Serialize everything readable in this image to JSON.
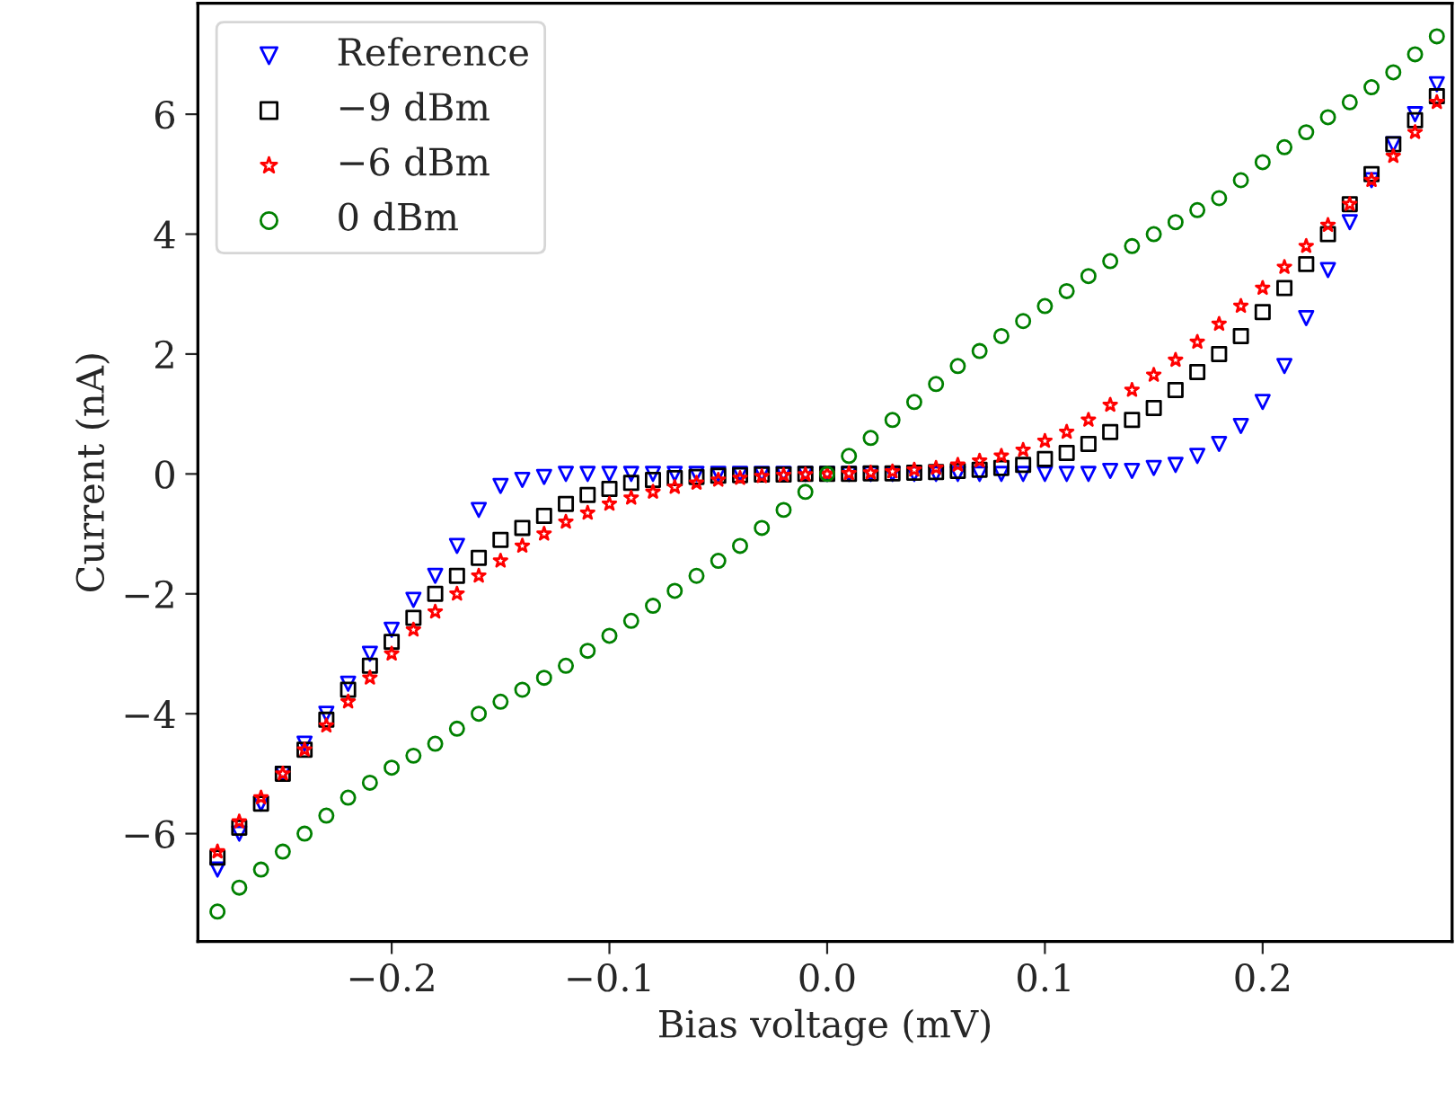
{
  "chart_data": {
    "type": "scatter",
    "xlabel": "Bias voltage (mV)",
    "ylabel": "Current (nA)",
    "x": [
      -0.28,
      -0.27,
      -0.26,
      -0.25,
      -0.24,
      -0.23,
      -0.22,
      -0.21,
      -0.2,
      -0.19,
      -0.18,
      -0.17,
      -0.16,
      -0.15,
      -0.14,
      -0.13,
      -0.12,
      -0.11,
      -0.1,
      -0.09,
      -0.08,
      -0.07,
      -0.06,
      -0.05,
      -0.04,
      -0.03,
      -0.02,
      -0.01,
      0.0,
      0.01,
      0.02,
      0.03,
      0.04,
      0.05,
      0.06,
      0.07,
      0.08,
      0.09,
      0.1,
      0.11,
      0.12,
      0.13,
      0.14,
      0.15,
      0.16,
      0.17,
      0.18,
      0.19,
      0.2,
      0.21,
      0.22,
      0.23,
      0.24,
      0.25,
      0.26,
      0.27,
      0.28
    ],
    "series": [
      {
        "name": "Reference",
        "color": "#0000ff",
        "marker": "triangle",
        "values": [
          -6.6,
          -6.0,
          -5.5,
          -5.0,
          -4.5,
          -4.0,
          -3.5,
          -3.0,
          -2.6,
          -2.1,
          -1.7,
          -1.2,
          -0.6,
          -0.2,
          -0.1,
          -0.05,
          0,
          0,
          0,
          0,
          0,
          0,
          0,
          0,
          0,
          0,
          0,
          0,
          0,
          0,
          0,
          0,
          0,
          0,
          0,
          0,
          0,
          0,
          0,
          0,
          0,
          0.05,
          0.05,
          0.1,
          0.15,
          0.3,
          0.5,
          0.8,
          1.2,
          1.8,
          2.6,
          3.4,
          4.2,
          4.9,
          5.5,
          6.0,
          6.5
        ]
      },
      {
        "name": "−9 dBm",
        "color": "#000000",
        "marker": "square",
        "values": [
          -6.4,
          -5.9,
          -5.5,
          -5.0,
          -4.6,
          -4.1,
          -3.6,
          -3.2,
          -2.8,
          -2.4,
          -2.0,
          -1.7,
          -1.4,
          -1.1,
          -0.9,
          -0.7,
          -0.5,
          -0.35,
          -0.25,
          -0.15,
          -0.1,
          -0.07,
          -0.05,
          -0.03,
          -0.02,
          -0.01,
          -0.01,
          0,
          0,
          0,
          0.01,
          0.01,
          0.02,
          0.03,
          0.05,
          0.07,
          0.1,
          0.15,
          0.25,
          0.35,
          0.5,
          0.7,
          0.9,
          1.1,
          1.4,
          1.7,
          2.0,
          2.3,
          2.7,
          3.1,
          3.5,
          4.0,
          4.5,
          5.0,
          5.5,
          5.9,
          6.3
        ]
      },
      {
        "name": "−6 dBm",
        "color": "#ff0000",
        "marker": "star",
        "values": [
          -6.3,
          -5.8,
          -5.4,
          -5.0,
          -4.6,
          -4.2,
          -3.8,
          -3.4,
          -3.0,
          -2.6,
          -2.3,
          -2.0,
          -1.7,
          -1.45,
          -1.2,
          -1.0,
          -0.8,
          -0.65,
          -0.5,
          -0.4,
          -0.3,
          -0.22,
          -0.15,
          -0.1,
          -0.07,
          -0.04,
          -0.02,
          -0.01,
          0,
          0.01,
          0.02,
          0.04,
          0.07,
          0.1,
          0.15,
          0.22,
          0.3,
          0.4,
          0.55,
          0.7,
          0.9,
          1.15,
          1.4,
          1.65,
          1.9,
          2.2,
          2.5,
          2.8,
          3.1,
          3.45,
          3.8,
          4.15,
          4.5,
          4.9,
          5.3,
          5.7,
          6.2
        ]
      },
      {
        "name": "0 dBm",
        "color": "#008000",
        "marker": "circle",
        "values": [
          -7.3,
          -6.9,
          -6.6,
          -6.3,
          -6.0,
          -5.7,
          -5.4,
          -5.15,
          -4.9,
          -4.7,
          -4.5,
          -4.25,
          -4.0,
          -3.8,
          -3.6,
          -3.4,
          -3.2,
          -2.95,
          -2.7,
          -2.45,
          -2.2,
          -1.95,
          -1.7,
          -1.45,
          -1.2,
          -0.9,
          -0.6,
          -0.3,
          0,
          0.3,
          0.6,
          0.9,
          1.2,
          1.5,
          1.8,
          2.05,
          2.3,
          2.55,
          2.8,
          3.05,
          3.3,
          3.55,
          3.8,
          4.0,
          4.2,
          4.4,
          4.6,
          4.9,
          5.2,
          5.45,
          5.7,
          5.95,
          6.2,
          6.45,
          6.7,
          7.0,
          7.3
        ]
      }
    ],
    "xlim": [
      -0.289,
      0.287
    ],
    "ylim": [
      -7.8,
      7.85
    ],
    "xticks": [
      {
        "value": -0.2,
        "label": "−0.2"
      },
      {
        "value": -0.1,
        "label": "−0.1"
      },
      {
        "value": 0.0,
        "label": "0.0"
      },
      {
        "value": 0.1,
        "label": "0.1"
      },
      {
        "value": 0.2,
        "label": "0.2"
      }
    ],
    "yticks": [
      {
        "value": -6,
        "label": "−6"
      },
      {
        "value": -4,
        "label": "−4"
      },
      {
        "value": -2,
        "label": "−2"
      },
      0,
      2,
      4,
      6
    ],
    "grid": false,
    "legend": "top left"
  }
}
